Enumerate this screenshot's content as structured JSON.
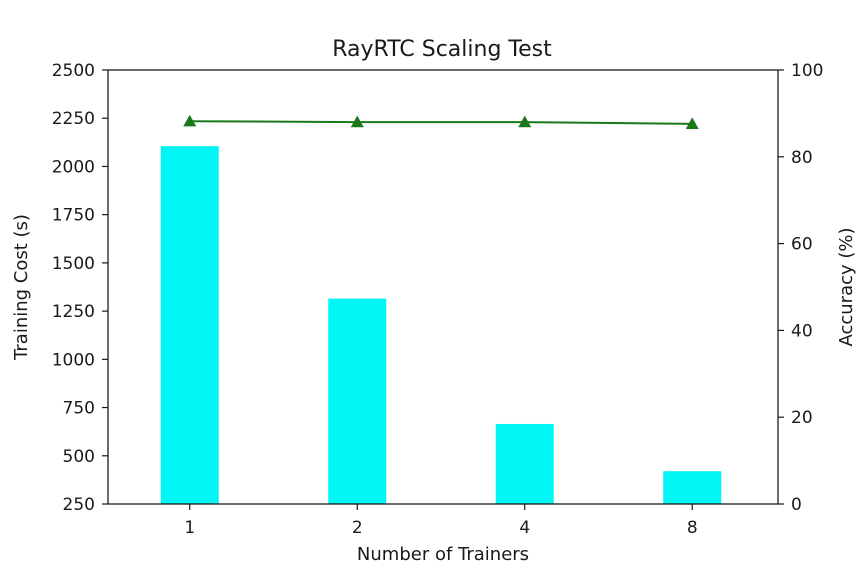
{
  "chart_data": {
    "type": "bar",
    "title": "RayRTC Scaling Test",
    "xlabel": "Number of Trainers",
    "ylabel": "Training Cost (s)",
    "y2label": "Accuracy (%)",
    "categories": [
      "1",
      "2",
      "4",
      "8"
    ],
    "ylim": [
      250,
      2500
    ],
    "y2lim": [
      0,
      100
    ],
    "yticks": [
      "250",
      "500",
      "750",
      "1000",
      "1250",
      "1500",
      "1750",
      "2000",
      "2250",
      "2500"
    ],
    "y2ticks": [
      "0",
      "20",
      "40",
      "60",
      "80",
      "100"
    ],
    "series": [
      {
        "values": [
          2105,
          1315,
          665,
          420
        ],
        "type": "bar",
        "axis": "left",
        "color": "#00f5f5"
      },
      {
        "values": [
          88.2,
          88.0,
          88.0,
          87.6
        ],
        "type": "line",
        "axis": "right",
        "color": "#1a7a1a",
        "marker": "triangle"
      }
    ],
    "grid": false,
    "legend": "none"
  }
}
